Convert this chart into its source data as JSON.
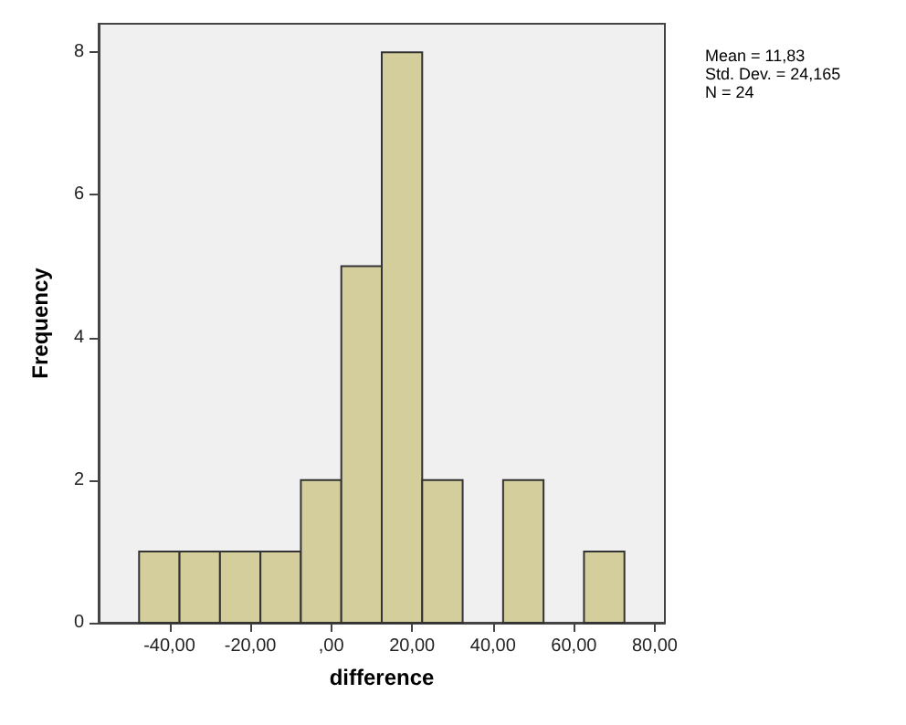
{
  "chart_data": {
    "type": "histogram",
    "xlabel": "difference",
    "ylabel": "Frequency",
    "bins": [
      -47.5,
      -37.5,
      -27.5,
      -17.5,
      -7.5,
      2.5,
      12.5,
      22.5,
      32.5,
      42.5,
      52.5,
      62.5,
      72.5
    ],
    "values": [
      1,
      1,
      1,
      1,
      2,
      5,
      8,
      2,
      0,
      2,
      0,
      1
    ],
    "color": "#d3ce9c",
    "xlim": [
      -57.5,
      82.5
    ],
    "xticks": [
      {
        "value": -40,
        "label": "-40,00"
      },
      {
        "value": -20,
        "label": "-20,00"
      },
      {
        "value": 0,
        "label": ",00"
      },
      {
        "value": 20,
        "label": "20,00"
      },
      {
        "value": 40,
        "label": "40,00"
      },
      {
        "value": 60,
        "label": "60,00"
      },
      {
        "value": 80,
        "label": "80,00"
      }
    ],
    "ylim": [
      0,
      8.4
    ],
    "yticks": [
      0,
      2,
      4,
      6,
      8
    ],
    "grid": false,
    "annotations": [
      "Mean = 11,83",
      "Std. Dev. = 24,165",
      "N = 24"
    ]
  }
}
